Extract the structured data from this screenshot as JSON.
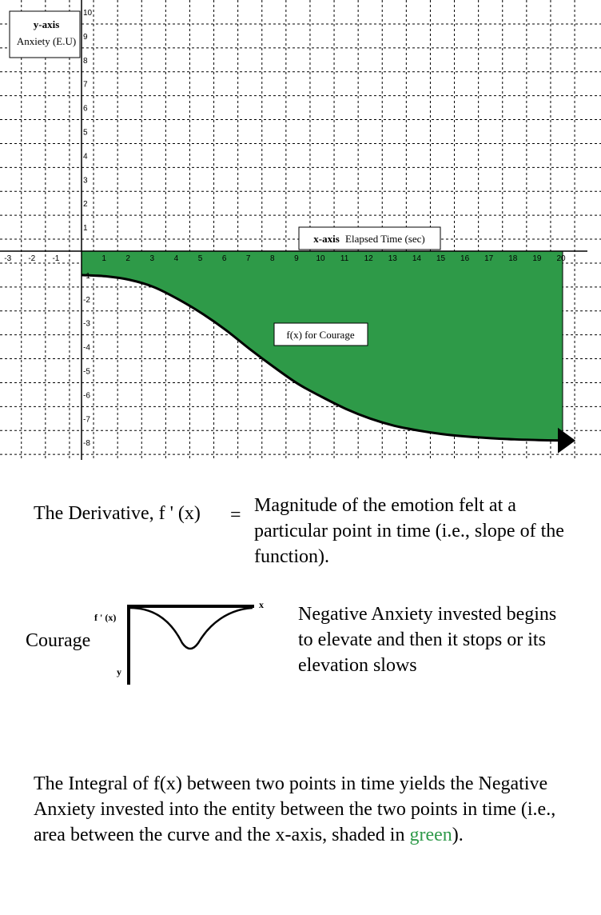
{
  "chart_data": {
    "type": "area",
    "xlim": [
      -3,
      20
    ],
    "ylim": [
      -8,
      10
    ],
    "grid": true,
    "x_ticks": [
      -3,
      -2,
      -1,
      1,
      2,
      3,
      4,
      5,
      6,
      7,
      8,
      9,
      10,
      11,
      12,
      13,
      14,
      15,
      16,
      17,
      18,
      19,
      20
    ],
    "y_ticks": [
      10,
      9,
      8,
      7,
      6,
      5,
      4,
      3,
      2,
      1,
      -1,
      -2,
      -3,
      -4,
      -5,
      -6,
      -7,
      -8
    ],
    "y_axis_box": {
      "title": "y-axis",
      "label": "Anxiety (E.U)"
    },
    "x_axis_box": {
      "title": "x-axis",
      "label": "Elapsed Time (sec)"
    },
    "series": [
      {
        "name": "f(x) for Courage",
        "fill_color": "#2e9a48",
        "x": [
          0,
          1,
          2,
          3,
          4,
          5,
          6,
          7,
          8,
          9,
          10,
          11,
          12,
          13,
          14,
          15,
          16,
          17,
          18,
          19,
          20
        ],
        "y": [
          -1.0,
          -1.05,
          -1.2,
          -1.5,
          -2.0,
          -2.6,
          -3.3,
          -4.1,
          -4.85,
          -5.55,
          -6.1,
          -6.6,
          -7.0,
          -7.3,
          -7.5,
          -7.65,
          -7.75,
          -7.82,
          -7.87,
          -7.9,
          -7.92
        ]
      }
    ],
    "curve_label": "f(x) for Courage"
  },
  "derivative": {
    "label": "The Derivative, f ' (x)",
    "equals": "=",
    "definition": "Magnitude of the emotion felt at a particular point in time (i.e., slope of the function)."
  },
  "courage_example": {
    "label": "Courage",
    "y_axis_label": "f ' (x)",
    "y_letter": "y",
    "x_letter": "x",
    "description": "Negative Anxiety invested begins to elevate and then it stops or its elevation slows"
  },
  "integral": {
    "text": "The Integral of f(x) between two points in time yields the Negative Anxiety invested into the entity between the two points in time (i.e., area between the curve and the x-axis, shaded in",
    "green_word": "green",
    "tail": ").",
    "green_color": "#2f9a4a"
  }
}
